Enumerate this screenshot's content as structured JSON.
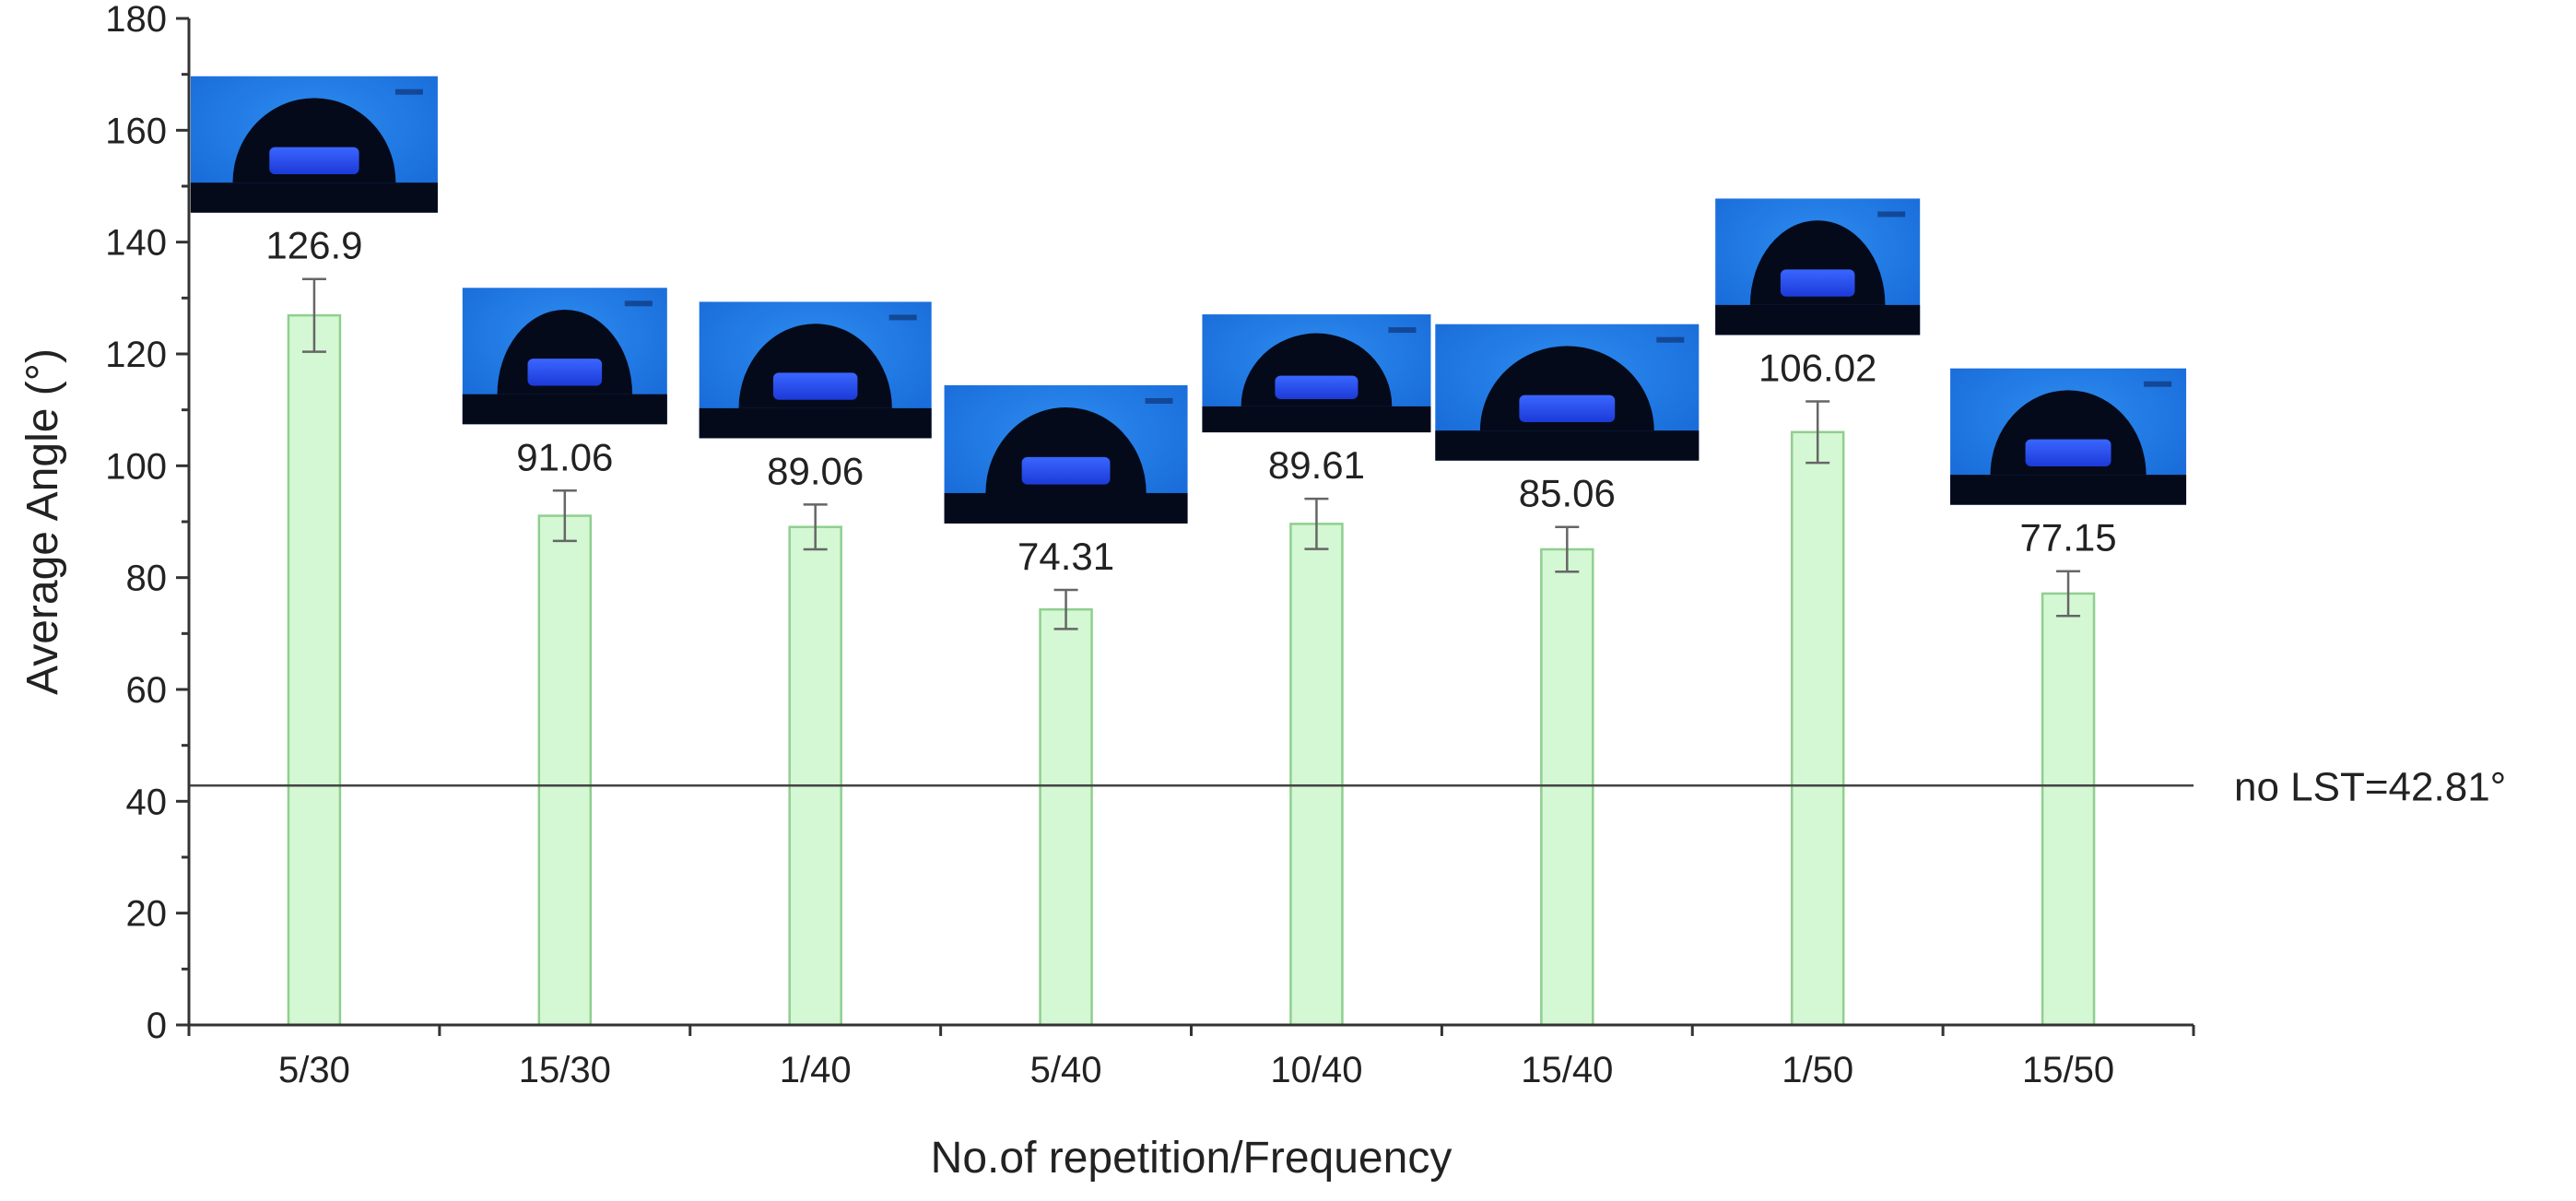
{
  "chart_data": {
    "type": "bar",
    "title": "",
    "xlabel": "No.of repetition/Frequency",
    "ylabel": "Average Angle (°)",
    "ylim": [
      0,
      180
    ],
    "yticks": [
      0,
      20,
      40,
      60,
      80,
      100,
      120,
      140,
      160,
      180
    ],
    "categories": [
      "5/30",
      "15/30",
      "1/40",
      "5/40",
      "10/40",
      "15/40",
      "1/50",
      "15/50"
    ],
    "values": [
      126.9,
      91.06,
      89.06,
      74.31,
      89.61,
      85.06,
      106.02,
      77.15
    ],
    "value_labels": [
      "126.9",
      "91.06",
      "89.06",
      "74.31",
      "89.61",
      "85.06",
      "106.02",
      "77.15"
    ],
    "errors": [
      6.5,
      4.5,
      4.0,
      3.5,
      4.5,
      4.0,
      5.5,
      4.0
    ],
    "reference_line": {
      "value": 42.81,
      "label": "no LST=42.81°"
    },
    "insets": [
      "droplet photo",
      "droplet photo",
      "droplet photo",
      "droplet photo",
      "droplet photo",
      "droplet photo",
      "droplet photo",
      "droplet photo"
    ],
    "colors": {
      "bar_fill": "#d4f7d4",
      "bar_stroke": "#8fcf8f",
      "inset_bg": "#1f7fe6",
      "droplet": "#050a1a",
      "droplet_core": "#2a50f0"
    },
    "grid": false,
    "legend": "none"
  }
}
